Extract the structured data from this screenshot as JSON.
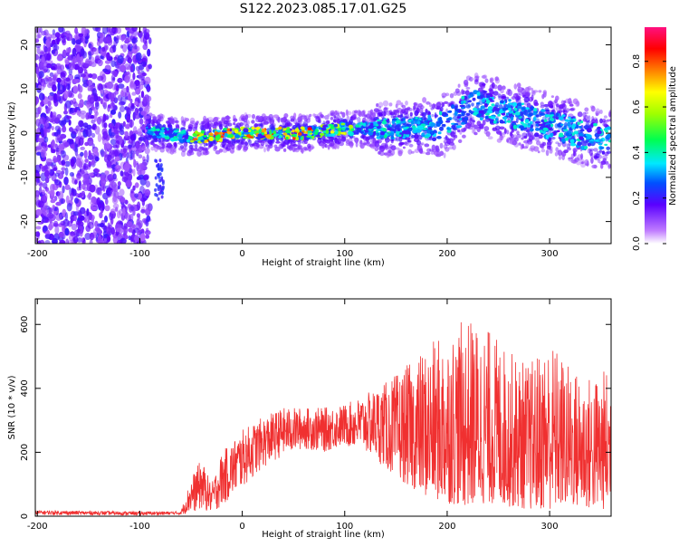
{
  "title": "S122.2023.085.17.01.G25",
  "chart_data": [
    {
      "type": "heatmap",
      "xlabel": "Height of straight line (km)",
      "ylabel": "Frequency (Hz)",
      "xlim": [
        -202,
        360
      ],
      "ylim": [
        -25,
        24
      ],
      "xticks": [
        -200,
        -100,
        0,
        100,
        200,
        300
      ],
      "yticks": [
        -20,
        -10,
        0,
        10,
        20
      ],
      "colorbar": {
        "label": "Normalized spectral amplitude",
        "range": [
          0,
          0.95
        ],
        "ticks": [
          0.0,
          0.2,
          0.4,
          0.6,
          0.8
        ]
      },
      "ridge": [
        {
          "x": -90,
          "freq": 0.5
        },
        {
          "x": -50,
          "freq": -1.0
        },
        {
          "x": 0,
          "freq": 0.0
        },
        {
          "x": 60,
          "freq": 0.0
        },
        {
          "x": 100,
          "freq": 1.0
        },
        {
          "x": 150,
          "freq": 1.0
        },
        {
          "x": 200,
          "freq": 2.0
        },
        {
          "x": 225,
          "freq": 7.0
        },
        {
          "x": 300,
          "freq": 2.0
        },
        {
          "x": 360,
          "freq": -2.0
        }
      ]
    },
    {
      "type": "line",
      "xlabel": "Height of straight line (km)",
      "ylabel": "SNR (10 * v/v)",
      "xlim": [
        -202,
        360
      ],
      "ylim": [
        0,
        680
      ],
      "xticks": [
        -200,
        -100,
        0,
        100,
        200,
        300
      ],
      "yticks": [
        0,
        200,
        400,
        600
      ],
      "color": "#f03030",
      "envelope": [
        {
          "x": -202,
          "low": 5,
          "high": 18
        },
        {
          "x": -100,
          "low": 3,
          "high": 15
        },
        {
          "x": -60,
          "low": 5,
          "high": 15
        },
        {
          "x": -50,
          "low": 10,
          "high": 120
        },
        {
          "x": -40,
          "low": 20,
          "high": 180
        },
        {
          "x": -30,
          "low": 10,
          "high": 100
        },
        {
          "x": -20,
          "low": 30,
          "high": 200
        },
        {
          "x": 0,
          "low": 90,
          "high": 270
        },
        {
          "x": 20,
          "low": 150,
          "high": 310
        },
        {
          "x": 40,
          "low": 190,
          "high": 340
        },
        {
          "x": 60,
          "low": 210,
          "high": 340
        },
        {
          "x": 80,
          "low": 200,
          "high": 340
        },
        {
          "x": 100,
          "low": 220,
          "high": 350
        },
        {
          "x": 120,
          "low": 200,
          "high": 380
        },
        {
          "x": 140,
          "low": 150,
          "high": 420
        },
        {
          "x": 160,
          "low": 100,
          "high": 470
        },
        {
          "x": 180,
          "low": 60,
          "high": 530
        },
        {
          "x": 200,
          "low": 40,
          "high": 580
        },
        {
          "x": 220,
          "low": 30,
          "high": 620
        },
        {
          "x": 240,
          "low": 40,
          "high": 590
        },
        {
          "x": 260,
          "low": 30,
          "high": 520
        },
        {
          "x": 280,
          "low": 20,
          "high": 480
        },
        {
          "x": 300,
          "low": 20,
          "high": 560
        },
        {
          "x": 320,
          "low": 30,
          "high": 470
        },
        {
          "x": 340,
          "low": 20,
          "high": 440
        },
        {
          "x": 360,
          "low": 20,
          "high": 470
        }
      ]
    }
  ]
}
